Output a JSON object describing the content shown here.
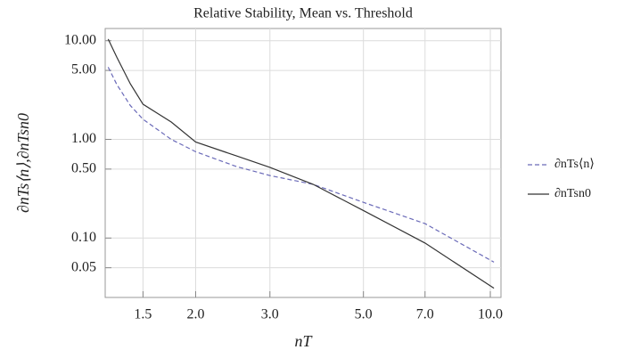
{
  "chart_data": {
    "type": "line",
    "title": "Relative Stability, Mean vs. Threshold",
    "x_label": "nT",
    "y_label": "∂nTs⟨n⟩,∂nTsn0",
    "x": [
      1.24,
      1.3,
      1.4,
      1.5,
      1.75,
      2.0,
      2.5,
      3.0,
      3.8,
      5.0,
      7.0,
      10.2
    ],
    "series": [
      {
        "name": "∂nTs⟨n⟩",
        "color": "#6a6ab8",
        "dash": true,
        "values": [
          5.4,
          3.6,
          2.2,
          1.6,
          1.0,
          0.75,
          0.53,
          0.43,
          0.35,
          0.23,
          0.14,
          0.057
        ]
      },
      {
        "name": "∂nTsn0",
        "color": "#333333",
        "dash": false,
        "values": [
          10.4,
          6.8,
          3.65,
          2.27,
          1.5,
          0.94,
          0.68,
          0.52,
          0.35,
          0.19,
          0.089,
          0.031
        ]
      }
    ],
    "xlim": [
      1.22,
      10.6
    ],
    "ylim": [
      0.025,
      13.3
    ],
    "xscale": "log",
    "yscale": "log",
    "grid": true,
    "legend": "right",
    "xticks": [
      1.5,
      {
        "value": 2,
        "label": "2.0"
      },
      {
        "value": 3,
        "label": "3.0"
      },
      {
        "value": 5,
        "label": "5.0"
      },
      {
        "value": 7,
        "label": "7.0"
      },
      {
        "value": 10,
        "label": "10.0"
      }
    ],
    "yticks": [
      0.05,
      {
        "value": 0.1,
        "label": "0.10"
      },
      {
        "value": 0.5,
        "label": "0.50"
      },
      {
        "value": 1,
        "label": "1.00"
      },
      {
        "value": 5,
        "label": "5.00"
      },
      {
        "value": 10,
        "label": "10.00"
      }
    ]
  }
}
